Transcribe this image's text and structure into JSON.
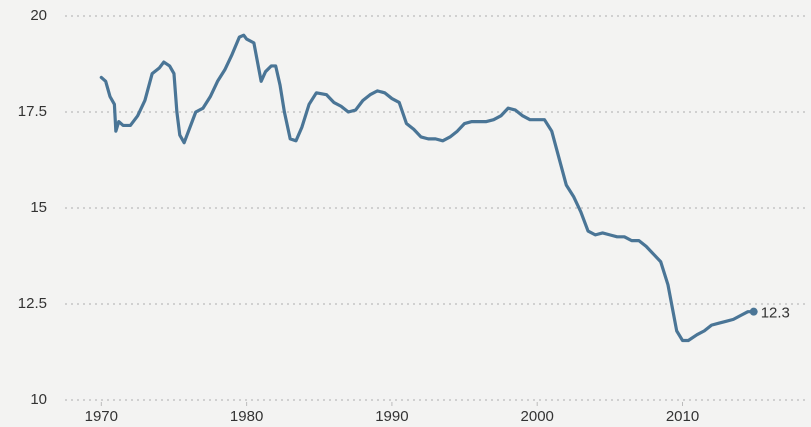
{
  "chart_data": {
    "type": "line",
    "x": [
      1970.0,
      1970.3,
      1970.6,
      1970.9,
      1971.0,
      1971.2,
      1971.5,
      1972.0,
      1972.5,
      1973.0,
      1973.5,
      1974.0,
      1974.3,
      1974.7,
      1975.0,
      1975.2,
      1975.4,
      1975.7,
      1976.0,
      1976.5,
      1977.0,
      1977.5,
      1978.0,
      1978.5,
      1979.0,
      1979.5,
      1979.8,
      1980.0,
      1980.5,
      1980.8,
      1981.0,
      1981.3,
      1981.7,
      1982.0,
      1982.3,
      1982.6,
      1983.0,
      1983.4,
      1983.8,
      1984.3,
      1984.8,
      1985.5,
      1986.0,
      1986.5,
      1987.0,
      1987.5,
      1988.0,
      1988.5,
      1989.0,
      1989.5,
      1990.0,
      1990.5,
      1991.0,
      1991.5,
      1992.0,
      1992.5,
      1993.0,
      1993.5,
      1994.0,
      1994.5,
      1995.0,
      1995.5,
      1996.0,
      1996.5,
      1997.0,
      1997.5,
      1998.0,
      1998.5,
      1999.0,
      1999.5,
      2000.0,
      2000.5,
      2001.0,
      2001.5,
      2002.0,
      2002.5,
      2003.0,
      2003.5,
      2004.0,
      2004.5,
      2005.0,
      2005.5,
      2006.0,
      2006.5,
      2007.0,
      2007.5,
      2008.0,
      2008.5,
      2009.0,
      2009.3,
      2009.6,
      2010.0,
      2010.4,
      2011.0,
      2011.5,
      2012.0,
      2012.5,
      2013.0,
      2013.5,
      2014.0,
      2014.5,
      2014.9
    ],
    "series": [
      {
        "color": "#4a7596",
        "values": [
          18.4,
          18.3,
          17.9,
          17.7,
          17.0,
          17.25,
          17.15,
          17.15,
          17.4,
          17.8,
          18.5,
          18.65,
          18.8,
          18.7,
          18.5,
          17.5,
          16.9,
          16.7,
          17.0,
          17.5,
          17.6,
          17.9,
          18.3,
          18.6,
          19.0,
          19.45,
          19.5,
          19.4,
          19.3,
          18.7,
          18.3,
          18.55,
          18.7,
          18.7,
          18.2,
          17.5,
          16.8,
          16.75,
          17.1,
          17.7,
          18.0,
          17.95,
          17.75,
          17.65,
          17.5,
          17.55,
          17.8,
          17.95,
          18.05,
          18.0,
          17.85,
          17.75,
          17.2,
          17.05,
          16.85,
          16.8,
          16.8,
          16.75,
          16.85,
          17.0,
          17.2,
          17.25,
          17.25,
          17.25,
          17.3,
          17.4,
          17.6,
          17.55,
          17.4,
          17.3,
          17.3,
          17.3,
          17.0,
          16.3,
          15.6,
          15.3,
          14.9,
          14.4,
          14.3,
          14.35,
          14.3,
          14.25,
          14.25,
          14.15,
          14.15,
          14.0,
          13.8,
          13.6,
          13.0,
          12.4,
          11.8,
          11.55,
          11.55,
          11.7,
          11.8,
          11.95,
          12.0,
          12.05,
          12.1,
          12.2,
          12.3,
          12.3
        ]
      }
    ],
    "xlim": [
      1967.5,
      2018.5
    ],
    "xticks": [
      1970,
      1980,
      1990,
      2000,
      2010
    ],
    "ylim": [
      10,
      20
    ],
    "yticks": [
      10,
      12.5,
      15,
      17.5,
      20
    ],
    "grid": true,
    "annotations": [
      {
        "text": "12.3",
        "x": 2014.9,
        "y": 12.3
      }
    ]
  }
}
